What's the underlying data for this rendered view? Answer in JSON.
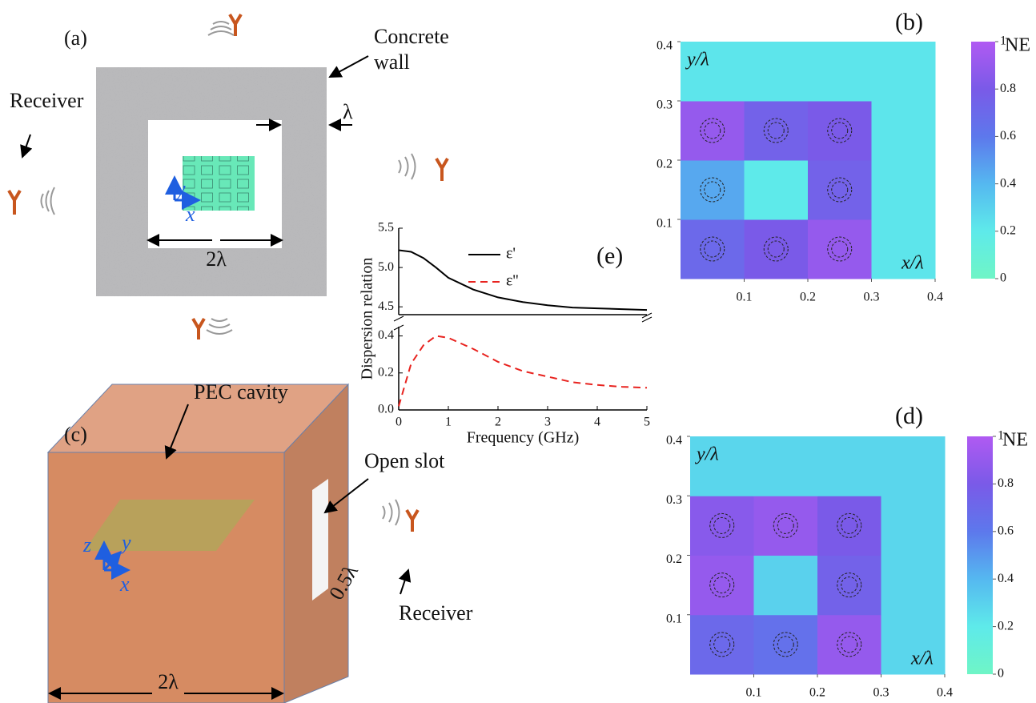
{
  "diagram_a": {
    "panel": "(a)",
    "wall_label": [
      "Concrete",
      "wall"
    ],
    "thickness": "λ",
    "receiver": "Receiver",
    "axis_y": "y",
    "axis_x": "x",
    "width": "2λ"
  },
  "diagram_c": {
    "panel": "(c)",
    "cavity_label": "PEC cavity",
    "slot_label": "Open slot",
    "slot_width": "0.5λ",
    "receiver": "Receiver",
    "axis_z": "z",
    "axis_y": "y",
    "axis_x": "x",
    "width": "2λ"
  },
  "chart_data": [
    {
      "type": "line",
      "title": "(e)",
      "xlabel": "Frequency (GHz)",
      "ylabel": "Dispersion relation",
      "x": [
        0,
        0.25,
        0.5,
        0.75,
        1,
        1.5,
        2,
        2.5,
        3,
        3.5,
        4,
        4.5,
        5
      ],
      "xlim": [
        0,
        5
      ],
      "xticks": [
        0,
        1,
        2,
        3,
        4,
        5
      ],
      "ylim": [
        0,
        0.45
      ],
      "yticks": [
        {
          "value": 0,
          "label": "0.0"
        },
        0.2,
        0.4
      ],
      "y2lim": [
        4.4,
        5.5
      ],
      "y2ticks": [
        4.5,
        {
          "value": 5,
          "label": "5.0"
        },
        5.5
      ],
      "series": [
        {
          "name": "ε'",
          "color": "#000000",
          "dash": false,
          "axis": "y2",
          "values": [
            5.22,
            5.2,
            5.12,
            5.0,
            4.87,
            4.72,
            4.62,
            4.56,
            4.52,
            4.49,
            4.48,
            4.47,
            4.46
          ]
        },
        {
          "name": "ε''",
          "color": "#e8231f",
          "dash": true,
          "values": [
            0.02,
            0.25,
            0.35,
            0.4,
            0.39,
            0.33,
            0.26,
            0.21,
            0.18,
            0.15,
            0.135,
            0.125,
            0.12
          ]
        }
      ]
    },
    {
      "type": "heatmap",
      "title": "(b)",
      "xlabel": "x/λ",
      "ylabel": "y/λ",
      "colorbar_label": "NE",
      "xlim": [
        0,
        0.4
      ],
      "ylim": [
        0,
        0.4
      ],
      "xticks": [
        0.1,
        0.2,
        0.3,
        0.4
      ],
      "yticks": [
        0.1,
        0.2,
        0.3,
        0.4
      ],
      "z": [
        [
          0.7,
          0.8,
          0.9,
          0.22
        ],
        [
          0.45,
          0.2,
          0.75,
          0.22
        ],
        [
          0.9,
          0.75,
          0.8,
          0.22
        ],
        [
          0.22,
          0.22,
          0.22,
          0.22
        ]
      ],
      "zlim": [
        0,
        1
      ],
      "zticks": [
        0,
        0.2,
        0.4,
        0.6,
        0.8,
        1
      ],
      "colorscale": [
        "#6ff5c6",
        "#5eeaea",
        "#55b8f0",
        "#5d78ec",
        "#7a5ae8",
        "#b05af2"
      ]
    },
    {
      "type": "heatmap",
      "title": "(d)",
      "xlabel": "x/λ",
      "ylabel": "y/λ",
      "colorbar_label": "NE",
      "xlim": [
        0,
        0.4
      ],
      "ylim": [
        0,
        0.4
      ],
      "xticks": [
        0.1,
        0.2,
        0.3,
        0.4
      ],
      "yticks": [
        0.1,
        0.2,
        0.3,
        0.4
      ],
      "z": [
        [
          0.7,
          0.65,
          0.9,
          0.28
        ],
        [
          0.9,
          0.3,
          0.75,
          0.28
        ],
        [
          0.85,
          0.9,
          0.8,
          0.28
        ],
        [
          0.28,
          0.28,
          0.28,
          0.28
        ]
      ],
      "zlim": [
        0,
        1
      ],
      "zticks": [
        0,
        0.2,
        0.4,
        0.6,
        0.8,
        1
      ],
      "colorscale": [
        "#6ff5c6",
        "#5eeaea",
        "#55b8f0",
        "#5d78ec",
        "#7a5ae8",
        "#b05af2"
      ]
    }
  ]
}
